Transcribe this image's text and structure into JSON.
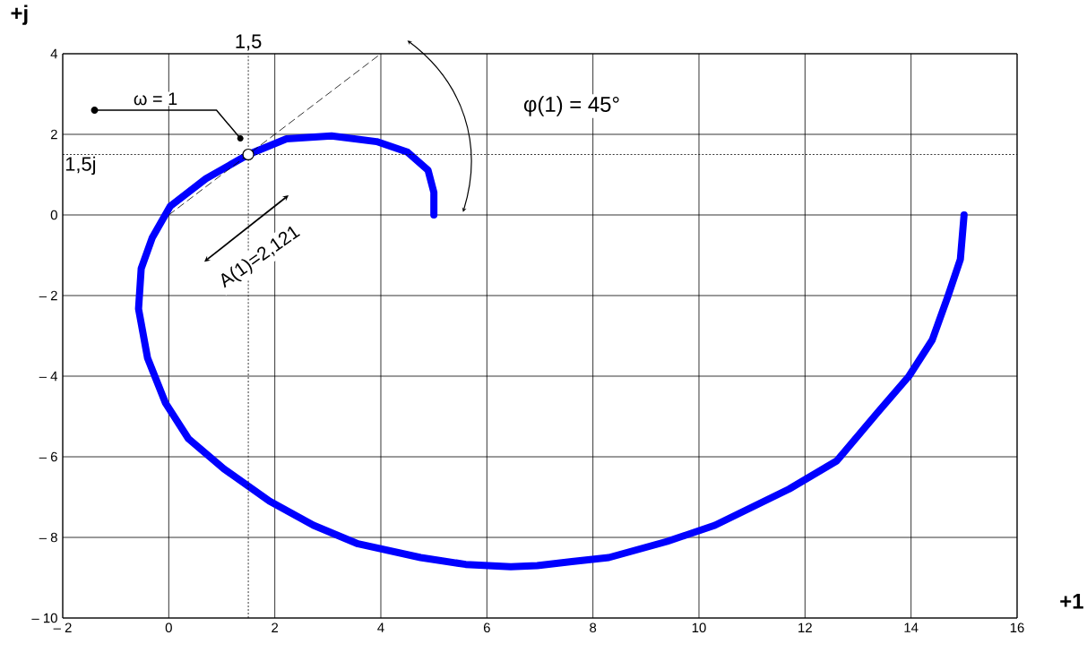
{
  "chart_data": {
    "type": "line",
    "xlabel": "+1",
    "ylabel": "+j",
    "series": [
      {
        "color": "#0000ff",
        "x": [
          15.0,
          14.93,
          14.7,
          14.4,
          13.96,
          13.37,
          12.6,
          11.7,
          10.3,
          9.4,
          8.3,
          7.6,
          6.95,
          6.45,
          5.6,
          4.75,
          3.57,
          2.73,
          1.9,
          1.04,
          0.37,
          -0.06,
          -0.4,
          -0.57,
          -0.52,
          -0.31,
          0.03,
          0.7,
          1.5,
          2.22,
          3.07,
          3.92,
          4.5,
          4.89,
          5.0,
          5.0
        ],
        "values": [
          0,
          -1.1,
          -2,
          -3.1,
          -4,
          -4.9,
          -6.1,
          -6.8,
          -7.7,
          -8.1,
          -8.5,
          -8.6,
          -8.7,
          -8.73,
          -8.67,
          -8.5,
          -8.16,
          -7.7,
          -7.1,
          -6.3,
          -5.55,
          -4.67,
          -3.55,
          -2.33,
          -1.33,
          -0.56,
          0.22,
          0.9,
          1.5,
          1.89,
          1.96,
          1.82,
          1.56,
          1.11,
          0.56,
          0
        ]
      },
      {
        "type": "line",
        "line_style": "dashed",
        "color": "#000000",
        "x": [
          0,
          4
        ],
        "values": [
          0,
          4
        ]
      }
    ],
    "xlim": [
      -2,
      16
    ],
    "ylim": [
      -10,
      4
    ],
    "xticks": [
      {
        "value": -2,
        "label": "– 2"
      },
      0,
      2,
      4,
      6,
      8,
      10,
      12,
      14,
      16
    ],
    "yticks": [
      {
        "value": -10,
        "label": "– 10"
      },
      {
        "value": -8,
        "label": "– 8"
      },
      {
        "value": -6,
        "label": "– 6"
      },
      {
        "value": -4,
        "label": "– 4"
      },
      {
        "value": -2,
        "label": "– 2"
      },
      0,
      2,
      4
    ],
    "grid": true,
    "ref_lines": [
      {
        "axis": "x",
        "value": 1.5,
        "label": "1,5",
        "line_style": "dotted"
      },
      {
        "axis": "y",
        "value": 1.5,
        "label": "1,5j",
        "line_style": "dotted"
      }
    ],
    "annotations": [
      "ω = 1",
      "φ(1) = 45°",
      "A(1)=2,121"
    ]
  }
}
